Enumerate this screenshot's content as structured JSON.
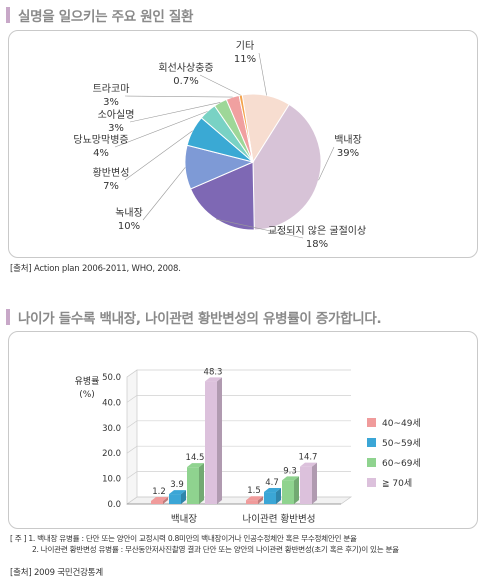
{
  "section1": {
    "title": "실명을 일으키는 주요 원인 질환",
    "source": "[출처] Action plan 2006-2011, WHO, 2008."
  },
  "section2": {
    "title": "나이가 들수록 백내장, 나이관련 황반변성의 유병률이 증가합니다."
  },
  "notes": {
    "line1": "[ 주 ] 1. 백내장 유병률 : 단안 또는 양안이 교정시력 0.8미만의 백내장이거나 인공수정체안 혹은 무수정체안인 분율",
    "line2": "2. 나이관련 황반변성 유병률 : 무산동안저사진촬영 결과 단안 또는 양안의 나이관련 황반변성(초기 혹은 후기)이 있는 분율",
    "source": "[출처] 2009 국민건강통계"
  },
  "chart_data": [
    {
      "type": "pie",
      "slices": [
        {
          "label": "기타",
          "value": 11,
          "display": "11%",
          "color": "#f7ddd0"
        },
        {
          "label": "백내장",
          "value": 39,
          "display": "39%",
          "color": "#d7c3d7"
        },
        {
          "label": "교정되지 않은 굴절이상",
          "value": 18,
          "display": "18%",
          "color": "#7e68b4"
        },
        {
          "label": "녹내장",
          "value": 10,
          "display": "10%",
          "color": "#7e9ad6"
        },
        {
          "label": "황반변성",
          "value": 7,
          "display": "7%",
          "color": "#3aa9d4"
        },
        {
          "label": "당뇨망막병증",
          "value": 4,
          "display": "4%",
          "color": "#79d2c4"
        },
        {
          "label": "소아실명",
          "value": 3,
          "display": "3%",
          "color": "#9ed798"
        },
        {
          "label": "트라코마",
          "value": 3,
          "display": "3%",
          "color": "#f0a0a0"
        },
        {
          "label": "회선사상충증",
          "value": 0.7,
          "display": "0.7%",
          "color": "#f4a24a"
        }
      ]
    },
    {
      "type": "bar",
      "ylabel": "유병률 (%)",
      "ylabel_line1": "유병률",
      "ylabel_line2": "(%)",
      "ylim": [
        0,
        50
      ],
      "yticks": [
        "0.0",
        "10.0",
        "20.0",
        "30.0",
        "40.0",
        "50.0"
      ],
      "categories": [
        "백내장",
        "나이관련 황반변성"
      ],
      "series": [
        {
          "name": "40~49세",
          "color": "#f09b9b",
          "values": [
            1.2,
            1.5
          ]
        },
        {
          "name": "50~59세",
          "color": "#3ba6d6",
          "values": [
            3.9,
            4.7
          ]
        },
        {
          "name": "60~69세",
          "color": "#8fd38f",
          "values": [
            14.5,
            9.3
          ]
        },
        {
          "name": "≧ 70세",
          "color": "#dcc1dc",
          "values": [
            48.3,
            14.7
          ]
        }
      ],
      "value_labels": [
        [
          "1.2",
          "3.9",
          "14.5",
          "48.3"
        ],
        [
          "1.5",
          "4.7",
          "9.3",
          "14.7"
        ]
      ]
    }
  ]
}
